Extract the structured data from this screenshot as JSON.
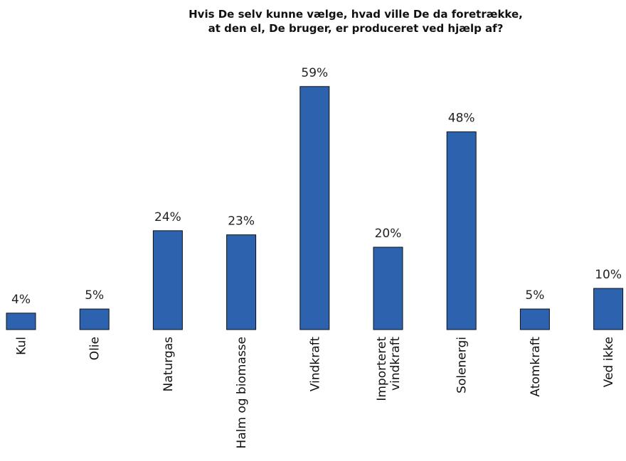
{
  "chart_data": {
    "type": "bar",
    "title_lines": [
      "Hvis De selv kunne vælge, hvad ville De da foretrække,",
      "at den el, De bruger, er produceret ved hjælp af?"
    ],
    "categories": [
      [
        "Kul"
      ],
      [
        "Olie"
      ],
      [
        "Naturgas"
      ],
      [
        "Halm og biomasse"
      ],
      [
        "Vindkraft"
      ],
      [
        "Importeret",
        "vindkraft"
      ],
      [
        "Solenergi"
      ],
      [
        "Atomkraft"
      ],
      [
        "Ved ikke"
      ]
    ],
    "values": [
      4,
      5,
      24,
      23,
      59,
      20,
      48,
      5,
      10
    ],
    "value_labels": [
      "4%",
      "5%",
      "24%",
      "23%",
      "59%",
      "20%",
      "48%",
      "5%",
      "10%"
    ],
    "unit": "%",
    "bar_color": "#2c62ae",
    "bar_stroke": "#111111",
    "grid": false,
    "legend": "none"
  }
}
